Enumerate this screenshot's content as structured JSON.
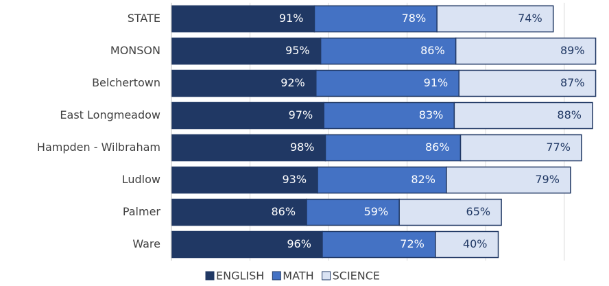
{
  "chart_data": {
    "type": "stacked-barh",
    "categories": [
      "STATE",
      "MONSON",
      "Belchertown",
      "East Longmeadow",
      "Hampden - Wilbraham",
      "Ludlow",
      "Palmer",
      "Ware"
    ],
    "series": [
      {
        "name": "ENGLISH",
        "color": "#203864",
        "values": [
          91,
          95,
          92,
          97,
          98,
          93,
          86,
          96
        ],
        "value_labels": [
          "91%",
          "95%",
          "92%",
          "97%",
          "98%",
          "93%",
          "86%",
          "96%"
        ]
      },
      {
        "name": "MATH",
        "color": "#4472c4",
        "values": [
          78,
          86,
          91,
          83,
          86,
          82,
          59,
          72
        ],
        "value_labels": [
          "78%",
          "86%",
          "91%",
          "83%",
          "86%",
          "82%",
          "59%",
          "72%"
        ]
      },
      {
        "name": "SCIENCE",
        "color": "#dae3f3",
        "values": [
          74,
          89,
          87,
          88,
          77,
          79,
          65,
          40
        ],
        "value_labels": [
          "74%",
          "89%",
          "87%",
          "88%",
          "77%",
          "79%",
          "65%",
          "40%"
        ]
      }
    ],
    "xlim": [
      0,
      275
    ],
    "xticks": [
      0,
      50,
      100,
      150,
      200,
      250
    ],
    "grid": true,
    "legend": "bottom"
  }
}
